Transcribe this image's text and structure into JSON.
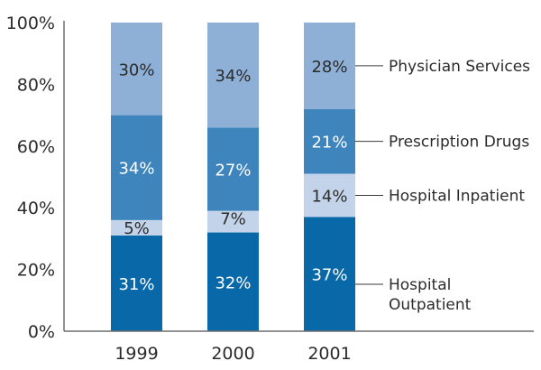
{
  "chart_data": {
    "type": "bar",
    "stacked": true,
    "title": "",
    "xlabel": "",
    "ylabel": "",
    "ylim": [
      0,
      100
    ],
    "yticks": [
      "0%",
      "20%",
      "40%",
      "60%",
      "80%",
      "100%"
    ],
    "ytick_values": [
      0,
      20,
      40,
      60,
      80,
      100
    ],
    "categories": [
      "1999",
      "2000",
      "2001"
    ],
    "series": [
      {
        "name": "Hospital Outpatient",
        "legend_lines": [
          "Hospital",
          "Outpatient"
        ],
        "color": "#0868a8",
        "text_color": "#ffffff",
        "values": [
          31,
          32,
          37
        ],
        "labels": [
          "31%",
          "32%",
          "37%"
        ]
      },
      {
        "name": "Hospital Inpatient",
        "legend_lines": [
          "Hospital Inpatient"
        ],
        "color": "#c3d3ea",
        "text_color": "#2b2b2b",
        "values": [
          5,
          7,
          14
        ],
        "labels": [
          "5%",
          "7%",
          "14%"
        ]
      },
      {
        "name": "Prescription Drugs",
        "legend_lines": [
          "Prescription Drugs"
        ],
        "color": "#3e85bd",
        "text_color": "#ffffff",
        "values": [
          34,
          27,
          21
        ],
        "labels": [
          "34%",
          "27%",
          "21%"
        ]
      },
      {
        "name": "Physician Services",
        "legend_lines": [
          "Physician Services"
        ],
        "color": "#8eafd6",
        "text_color": "#2b2b2b",
        "values": [
          30,
          34,
          28
        ],
        "labels": [
          "30%",
          "34%",
          "28%"
        ]
      }
    ],
    "legend": "right",
    "grid": false
  }
}
